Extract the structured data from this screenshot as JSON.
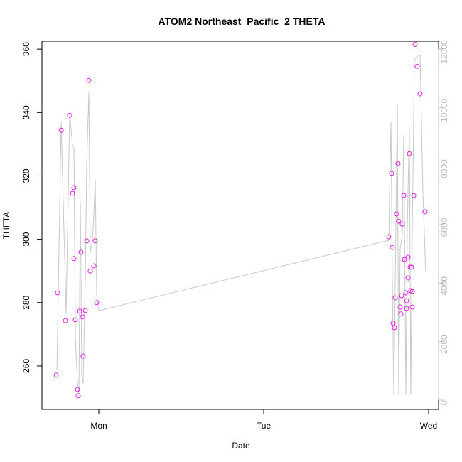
{
  "chart_data": {
    "type": "scatter",
    "title": "ATOM2 Northeast_Pacific_2 THETA",
    "xlabel": "Date",
    "ylabel": "THETA",
    "xlim": [
      -8.28,
      49.45
    ],
    "xticks": [
      {
        "value": 0,
        "label": "Mon"
      },
      {
        "value": 24,
        "label": "Tue"
      },
      {
        "value": 48,
        "label": "Wed"
      }
    ],
    "ylim": [
      246.3,
      362.5
    ],
    "yticks": [
      260,
      280,
      300,
      320,
      340,
      360
    ],
    "y2lim": [
      -316,
      12266
    ],
    "y2ticks": [
      0,
      2000,
      4000,
      6000,
      8000,
      10000,
      12000
    ],
    "series": [
      {
        "type": "line",
        "axis": "y2",
        "color": "#c8c8c8",
        "x": [
          -6.1,
          -5.48,
          -4.76,
          -4.24,
          -3.83,
          -3.62,
          -3.41,
          -3.1,
          -2.9,
          -2.69,
          -2.48,
          -2.28,
          -1.97,
          -1.76,
          -1.45,
          -1.24,
          -0.93,
          -0.72,
          -0.52,
          -0.31,
          0,
          42.2,
          42.52,
          42.72,
          42.93,
          43.14,
          43.45,
          43.65,
          43.86,
          44.17,
          44.38,
          44.69,
          44.9,
          45.2,
          45.41,
          45.62,
          45.93,
          46.34,
          46.76,
          47.17,
          47.58
        ],
        "values": [
          1044,
          9497,
          2988,
          9789,
          8696,
          8623,
          2137,
          559,
          194,
          6801,
          802,
          559,
          4202,
          8088,
          10517,
          5052,
          5417,
          6388,
          7554,
          3595,
          3060,
          5465,
          9497,
          4202,
          194,
          3959,
          10129,
          194,
          5174,
          5659,
          9060,
          194,
          5902,
          9351,
          194,
          5659,
          11610,
          11732,
          11805,
          7117,
          4372
        ]
      },
      {
        "type": "scatter",
        "color": "#e61ee6",
        "x": [
          -6.2,
          -6.0,
          -5.48,
          -4.86,
          -4.24,
          -3.83,
          -3.62,
          -3.62,
          -3.41,
          -3.1,
          -3.0,
          -2.79,
          -2.59,
          -2.38,
          -2.28,
          -1.97,
          -1.76,
          -1.45,
          -1.24,
          -0.72,
          -0.52,
          -0.31,
          42.2,
          42.62,
          42.72,
          42.83,
          43.03,
          43.14,
          43.34,
          43.55,
          43.65,
          43.86,
          43.96,
          44.07,
          44.17,
          44.38,
          44.48,
          44.69,
          44.79,
          44.79,
          45.0,
          45.0,
          45.2,
          45.31,
          45.41,
          45.52,
          45.62,
          45.62,
          45.83,
          46.03,
          46.34,
          46.76,
          47.48
        ],
        "values": [
          257.1,
          283.1,
          334.4,
          274.3,
          339.1,
          314.5,
          316.3,
          293.9,
          274.6,
          252.6,
          250.6,
          277.3,
          295.9,
          275.5,
          263.1,
          277.5,
          299.5,
          350.1,
          290.0,
          291.6,
          299.5,
          280.0,
          300.8,
          320.8,
          297.4,
          273.5,
          272.1,
          281.5,
          308.0,
          323.9,
          305.7,
          278.6,
          276.4,
          282.2,
          304.8,
          313.8,
          293.6,
          283.1,
          280.6,
          278.2,
          287.8,
          294.3,
          327.0,
          291.2,
          283.8,
          291.2,
          283.5,
          278.6,
          313.8,
          361.5,
          354.6,
          345.9,
          308.7
        ]
      }
    ]
  }
}
